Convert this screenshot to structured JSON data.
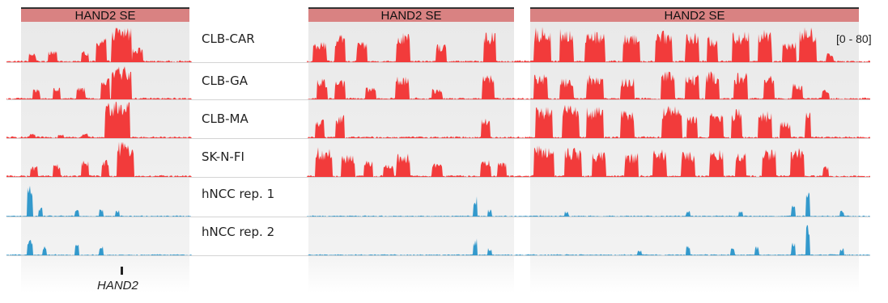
{
  "region_label": "HAND2 SE",
  "scale_label": "[0 - 80]",
  "gene": {
    "name": "HAND2"
  },
  "colors": {
    "se_signal": "#f23b3b",
    "ncc_signal": "#3399cc",
    "header_fill": "#d98282",
    "panel_shade": "#ececec",
    "baseline": "#d4d4d4"
  },
  "tracks": [
    {
      "name": "CLB-CAR",
      "kind": "se"
    },
    {
      "name": "CLB-GA",
      "kind": "se"
    },
    {
      "name": "CLB-MA",
      "kind": "se"
    },
    {
      "name": "SK-N-FI",
      "kind": "se"
    },
    {
      "name": "hNCC rep. 1",
      "kind": "ncc"
    },
    {
      "name": "hNCC rep. 2",
      "kind": "ncc"
    }
  ]
}
